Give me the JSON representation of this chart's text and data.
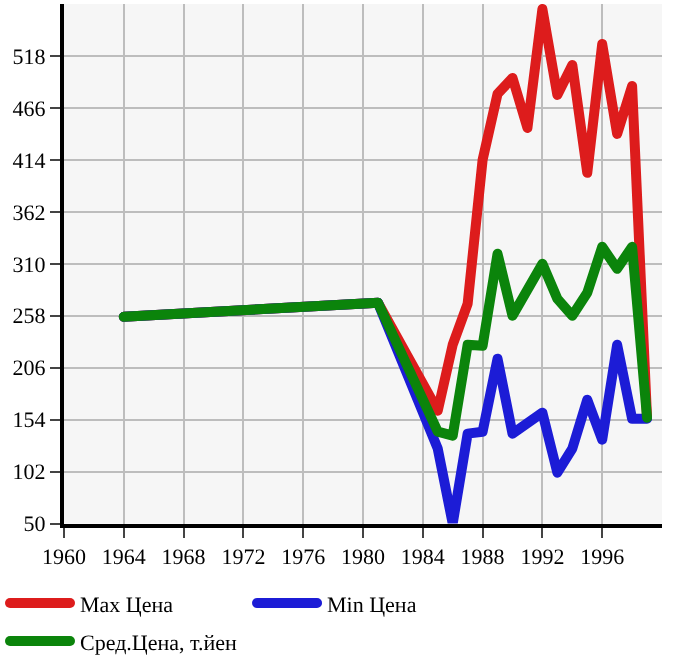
{
  "chart_data": {
    "type": "line",
    "x": [
      1964,
      1981,
      1985,
      1986,
      1987,
      1988,
      1989,
      1990,
      1991,
      1992,
      1993,
      1994,
      1995,
      1996,
      1997,
      1998,
      1999
    ],
    "series": [
      {
        "name": "Max Цена",
        "color": "#dd1c1c",
        "values": [
          257,
          271,
          163,
          229,
          270,
          414,
          480,
          496,
          446,
          565,
          479,
          509,
          401,
          530,
          440,
          488,
          156
        ]
      },
      {
        "name": "Min Цена",
        "color": "#1c1cd6",
        "values": [
          257,
          271,
          125,
          50,
          140,
          142,
          215,
          140,
          null,
          161,
          101,
          125,
          174,
          134,
          229,
          155,
          155
        ]
      },
      {
        "name": "Сред.Цена, т.йен",
        "color": "#0b840b",
        "values": [
          257,
          271,
          142,
          138,
          229,
          228,
          320,
          258,
          null,
          310,
          275,
          258,
          281,
          327,
          305,
          327,
          156
        ]
      }
    ],
    "xlim": [
      1960,
      2000
    ],
    "xticks": [
      1960,
      1964,
      1968,
      1972,
      1976,
      1980,
      1984,
      1988,
      1992,
      1996
    ],
    "ylim": [
      50,
      570
    ],
    "yticks": [
      50,
      102,
      154,
      206,
      258,
      310,
      362,
      414,
      466,
      518
    ],
    "grid": true,
    "legend": "bottom",
    "marker": "none",
    "line_style": "solid"
  }
}
